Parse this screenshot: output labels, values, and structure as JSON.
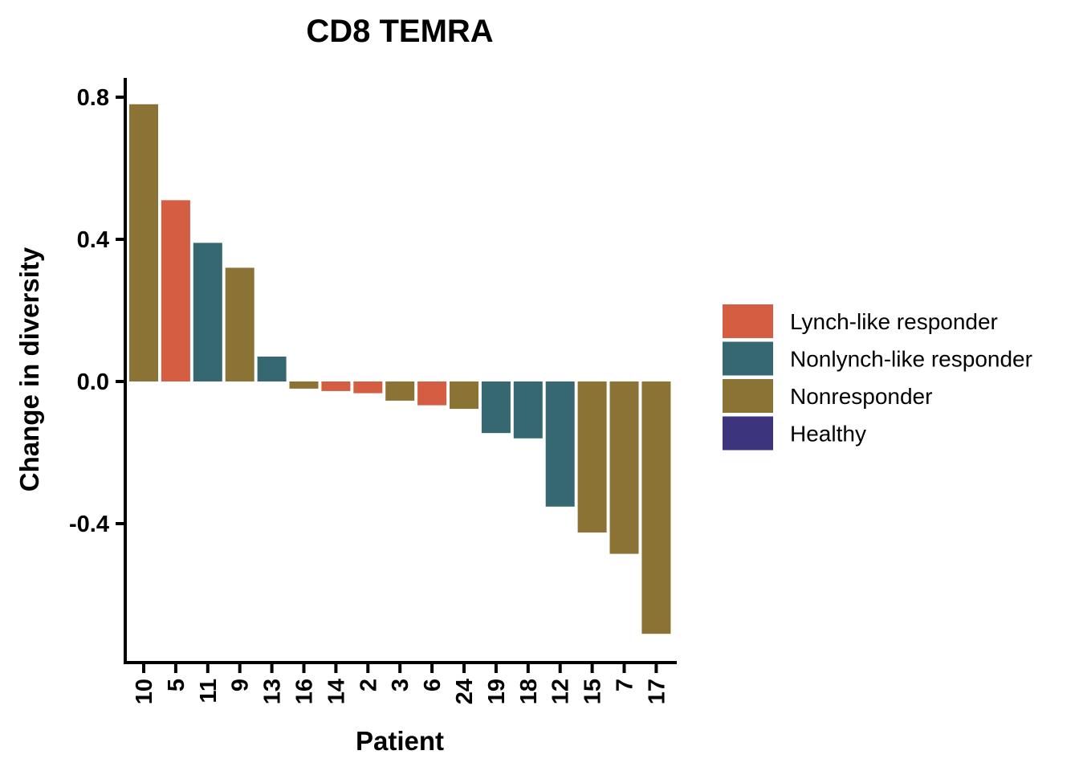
{
  "chart_data": {
    "type": "bar",
    "title": "CD8 TEMRA",
    "xlabel": "Patient",
    "ylabel": "Change in diversity",
    "categories": [
      "10",
      "5",
      "11",
      "9",
      "13",
      "16",
      "14",
      "2",
      "3",
      "6",
      "24",
      "19",
      "18",
      "12",
      "15",
      "7",
      "17"
    ],
    "values": [
      0.78,
      0.51,
      0.39,
      0.32,
      0.07,
      -0.02,
      -0.027,
      -0.033,
      -0.054,
      -0.067,
      -0.077,
      -0.145,
      -0.16,
      -0.352,
      -0.425,
      -0.485,
      -0.71
    ],
    "groups": [
      "Nonresponder",
      "Lynch-like responder",
      "Nonlynch-like responder",
      "Nonresponder",
      "Nonlynch-like responder",
      "Nonresponder",
      "Lynch-like responder",
      "Lynch-like responder",
      "Nonresponder",
      "Lynch-like responder",
      "Nonresponder",
      "Nonlynch-like responder",
      "Nonlynch-like responder",
      "Nonlynch-like responder",
      "Nonresponder",
      "Nonresponder",
      "Nonresponder"
    ],
    "ylim": [
      -0.78,
      0.85
    ],
    "yticks": [
      0.8,
      0.4,
      0.0,
      -0.4
    ],
    "ytick_labels": [
      "0.8",
      "0.4",
      "0.0",
      "-0.4"
    ],
    "grid": false,
    "legend_position": "right",
    "legend": [
      {
        "name": "Lynch-like responder",
        "color": "#D45D42"
      },
      {
        "name": "Nonlynch-like responder",
        "color": "#366872"
      },
      {
        "name": "Nonresponder",
        "color": "#8B7335"
      },
      {
        "name": "Healthy",
        "color": "#3C357D"
      }
    ]
  }
}
